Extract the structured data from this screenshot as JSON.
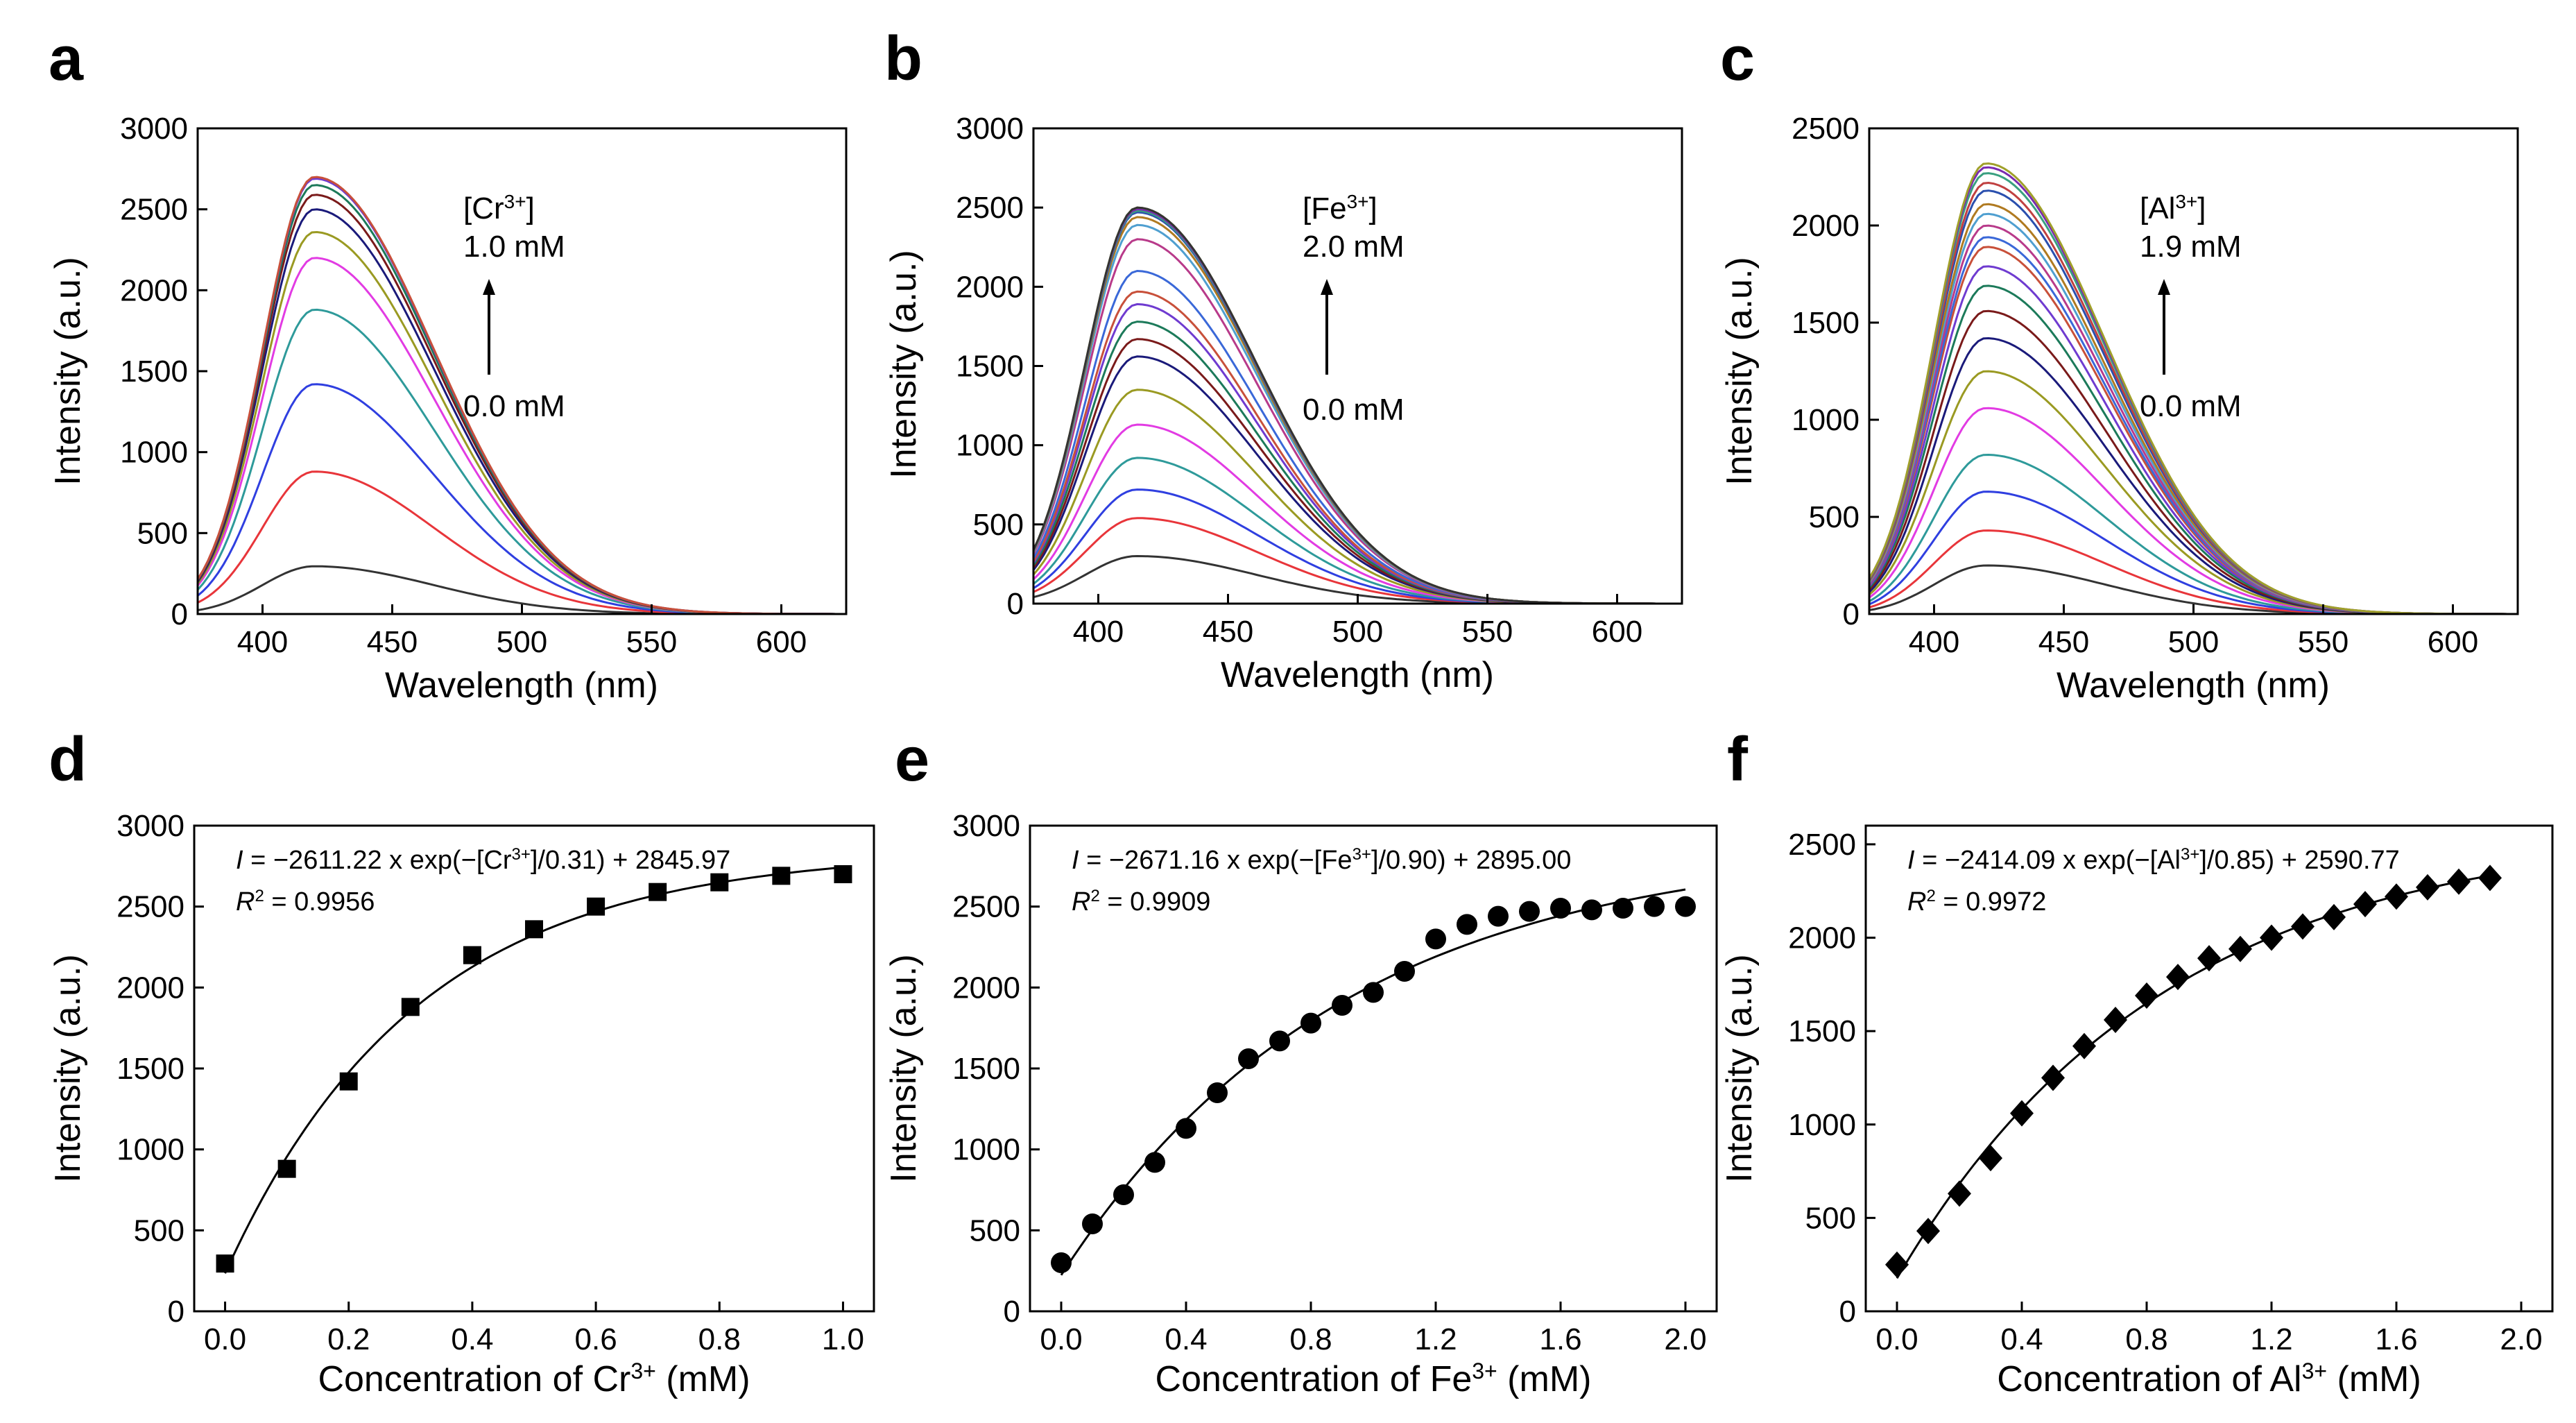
{
  "figure": {
    "colors": {
      "spectra": [
        "#333333",
        "#e8353a",
        "#2f3fe0",
        "#2e9a9a",
        "#e23be3",
        "#9a9a22",
        "#1a1a7a",
        "#7a1a1a",
        "#1c7a5a",
        "#6f3bd0",
        "#c8503a",
        "#3a68d8",
        "#b83a8a",
        "#4f9fd0",
        "#b07a20",
        "#2a4fae",
        "#c04040",
        "#3aa080",
        "#7a2ab0",
        "#a0a02a"
      ],
      "fit_line": "#000000",
      "marker": "#000000"
    },
    "panels": [
      {
        "letter": "a",
        "xlabel": "Wavelength (nm)",
        "ylabel": "Intensity (a.u.)",
        "xticks": [
          "400",
          "450",
          "500",
          "550",
          "600"
        ],
        "yticks": [
          "0",
          "500",
          "1000",
          "1500",
          "2000",
          "2500",
          "3000"
        ],
        "annotation": {
          "ion_pre": "[Cr",
          "ion_sup": "3+",
          "ion_post": "]",
          "high": "1.0 mM",
          "low": "0.0 mM"
        }
      },
      {
        "letter": "b",
        "xlabel": "Wavelength (nm)",
        "ylabel": "Intensity (a.u.)",
        "xticks": [
          "400",
          "450",
          "500",
          "550",
          "600"
        ],
        "yticks": [
          "0",
          "500",
          "1000",
          "1500",
          "2000",
          "2500",
          "3000"
        ],
        "annotation": {
          "ion_pre": "[Fe",
          "ion_sup": "3+",
          "ion_post": "]",
          "high": "2.0 mM",
          "low": "0.0 mM"
        }
      },
      {
        "letter": "c",
        "xlabel": "Wavelength (nm)",
        "ylabel": "Intensity (a.u.)",
        "xticks": [
          "400",
          "450",
          "500",
          "550",
          "600"
        ],
        "yticks": [
          "0",
          "500",
          "1000",
          "1500",
          "2000",
          "2500"
        ],
        "annotation": {
          "ion_pre": "[Al",
          "ion_sup": "3+",
          "ion_post": "]",
          "high": "1.9 mM",
          "low": "0.0 mM"
        }
      },
      {
        "letter": "d",
        "xlabel_pre": "Concentration of Cr",
        "xlabel_sup": "3+",
        "xlabel_post": " (mM)",
        "ylabel": "Intensity (a.u.)",
        "xticks": [
          "0.0",
          "0.2",
          "0.4",
          "0.6",
          "0.8",
          "1.0"
        ],
        "yticks": [
          "0",
          "500",
          "1000",
          "1500",
          "2000",
          "2500",
          "3000"
        ],
        "equation": {
          "var": "I",
          "pre": " = −2611.22 x exp(−[Cr",
          "sup": "3+",
          "post": "]/0.31) + 2845.97"
        },
        "r2": {
          "var": "R",
          "sup": "2",
          "post": " = 0.9956"
        }
      },
      {
        "letter": "e",
        "xlabel_pre": "Concentration of Fe",
        "xlabel_sup": "3+",
        "xlabel_post": " (mM)",
        "ylabel": "Intensity (a.u.)",
        "xticks": [
          "0.0",
          "0.4",
          "0.8",
          "1.2",
          "1.6",
          "2.0"
        ],
        "yticks": [
          "0",
          "500",
          "1000",
          "1500",
          "2000",
          "2500",
          "3000"
        ],
        "equation": {
          "var": "I",
          "pre": " = −2671.16 x exp(−[Fe",
          "sup": "3+",
          "post": "]/0.90) + 2895.00"
        },
        "r2": {
          "var": "R",
          "sup": "2",
          "post": " = 0.9909"
        }
      },
      {
        "letter": "f",
        "xlabel_pre": "Concentration of Al",
        "xlabel_sup": "3+",
        "xlabel_post": " (mM)",
        "ylabel": "Intensity (a.u.)",
        "xticks": [
          "0.0",
          "0.4",
          "0.8",
          "1.2",
          "1.6",
          "2.0"
        ],
        "yticks": [
          "0",
          "500",
          "1000",
          "1500",
          "2000",
          "2500"
        ],
        "equation": {
          "var": "I",
          "pre": " = −2414.09 x exp(−[Al",
          "sup": "3+",
          "post": "]/0.85) + 2590.77"
        },
        "r2": {
          "var": "R",
          "sup": "2",
          "post": " = 0.9972"
        }
      }
    ]
  },
  "chart_data": [
    {
      "type": "line",
      "panel": "a",
      "xlim": [
        375,
        625
      ],
      "ylim": [
        0,
        3000
      ],
      "peak_wavelength": 420,
      "spectrum_peak_intensities": [
        295,
        880,
        1420,
        1880,
        2200,
        2360,
        2500,
        2590,
        2650,
        2690,
        2700
      ]
    },
    {
      "type": "line",
      "panel": "b",
      "xlim": [
        375,
        625
      ],
      "ylim": [
        0,
        3000
      ],
      "peak_wavelength": 415,
      "spectrum_peak_intensities": [
        300,
        540,
        720,
        920,
        1130,
        1350,
        1560,
        1670,
        1780,
        1890,
        1970,
        2100,
        2300,
        2390,
        2440,
        2470,
        2490,
        2480,
        2490,
        2500,
        2500
      ]
    },
    {
      "type": "line",
      "panel": "c",
      "xlim": [
        375,
        625
      ],
      "ylim": [
        0,
        2500
      ],
      "peak_wavelength": 420,
      "spectrum_peak_intensities": [
        250,
        430,
        630,
        820,
        1060,
        1250,
        1420,
        1560,
        1690,
        1790,
        1890,
        1940,
        2000,
        2060,
        2110,
        2180,
        2220,
        2270,
        2300,
        2320
      ]
    },
    {
      "type": "scatter",
      "panel": "d",
      "marker": "square",
      "xlim": [
        -0.05,
        1.05
      ],
      "ylim": [
        0,
        3000
      ],
      "x": [
        0.0,
        0.1,
        0.2,
        0.3,
        0.4,
        0.5,
        0.6,
        0.7,
        0.8,
        0.9,
        1.0
      ],
      "y": [
        295,
        880,
        1420,
        1880,
        2200,
        2360,
        2500,
        2590,
        2650,
        2690,
        2700
      ],
      "fit": {
        "A": -2611.22,
        "t": 0.31,
        "y0": 2845.97
      }
    },
    {
      "type": "scatter",
      "panel": "e",
      "marker": "circle",
      "xlim": [
        -0.1,
        2.1
      ],
      "ylim": [
        0,
        3000
      ],
      "x": [
        0.0,
        0.1,
        0.2,
        0.3,
        0.4,
        0.5,
        0.6,
        0.7,
        0.8,
        0.9,
        1.0,
        1.1,
        1.2,
        1.3,
        1.4,
        1.5,
        1.6,
        1.7,
        1.8,
        1.9,
        2.0
      ],
      "y": [
        300,
        540,
        720,
        920,
        1130,
        1350,
        1560,
        1670,
        1780,
        1890,
        1970,
        2100,
        2300,
        2390,
        2440,
        2470,
        2490,
        2480,
        2490,
        2500,
        2500
      ],
      "fit": {
        "A": -2671.16,
        "t": 0.9,
        "y0": 2895.0
      }
    },
    {
      "type": "scatter",
      "panel": "f",
      "marker": "diamond",
      "xlim": [
        -0.1,
        2.1
      ],
      "ylim": [
        0,
        2600
      ],
      "x": [
        0.0,
        0.1,
        0.2,
        0.3,
        0.4,
        0.5,
        0.6,
        0.7,
        0.8,
        0.9,
        1.0,
        1.1,
        1.2,
        1.3,
        1.4,
        1.5,
        1.6,
        1.7,
        1.8,
        1.9
      ],
      "y": [
        250,
        430,
        630,
        820,
        1060,
        1250,
        1420,
        1560,
        1690,
        1790,
        1890,
        1940,
        2000,
        2060,
        2110,
        2180,
        2220,
        2270,
        2300,
        2320
      ],
      "fit": {
        "A": -2414.09,
        "t": 0.85,
        "y0": 2590.77
      }
    }
  ]
}
